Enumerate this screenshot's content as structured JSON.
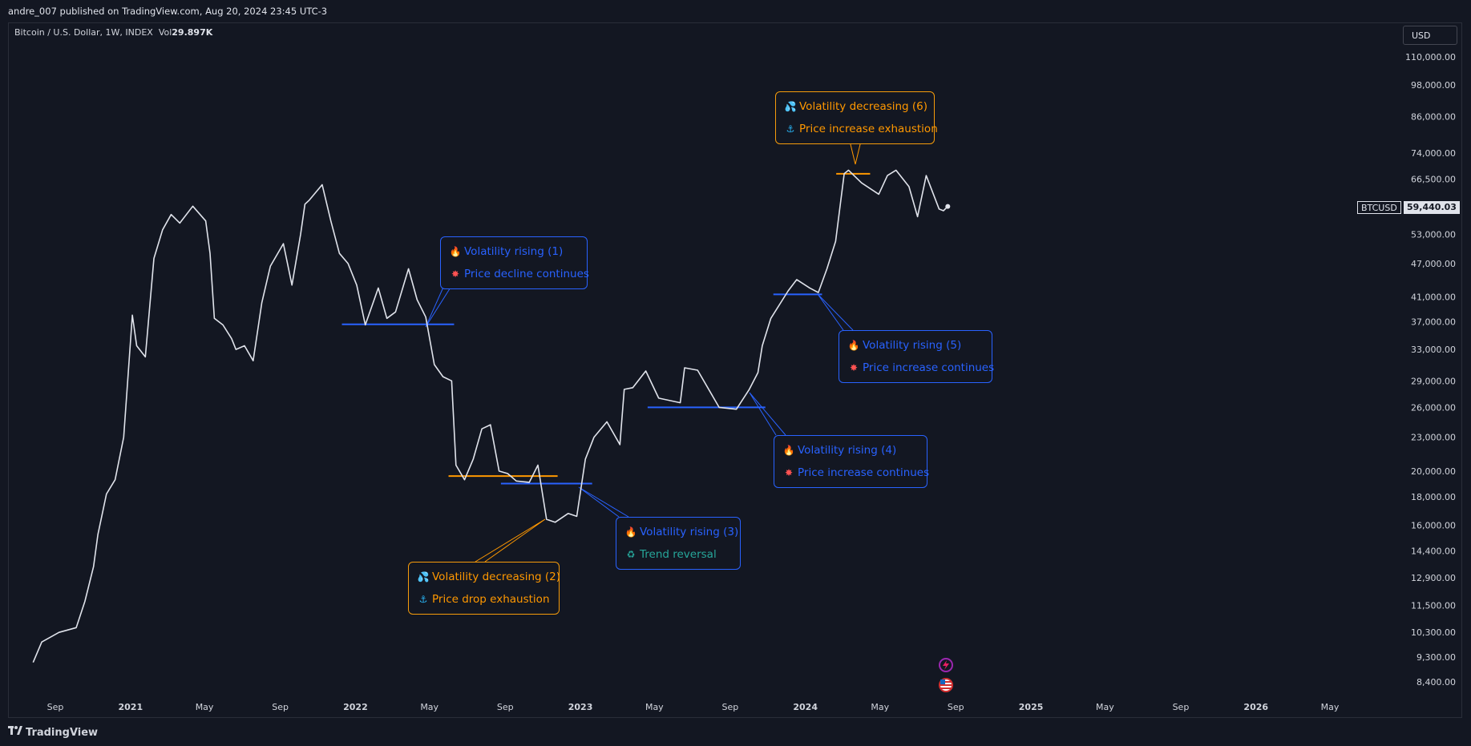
{
  "header": {
    "publish_line": "andre_007 published on TradingView.com, Aug 20, 2024 23:45 UTC-3"
  },
  "symbol": {
    "description": "Bitcoin / U.S. Dollar, 1W, INDEX",
    "vol_label": "Vol",
    "vol_value": "29.897K"
  },
  "currency_button": "USD",
  "last_price": {
    "symbol": "BTCUSD",
    "value": "59,440.03",
    "numeric": 59440.03
  },
  "footer": {
    "brand": "TradingView"
  },
  "colors": {
    "background": "#131722",
    "line": "#e0e3eb",
    "blue": "#2962ff",
    "orange": "#ff9800",
    "green": "#26a69a"
  },
  "callouts": [
    {
      "id": "c1",
      "style": "blue",
      "rows": [
        {
          "icon": "fire-icon",
          "text": "Volatility rising (1)"
        },
        {
          "icon": "burst-icon",
          "text": "Price decline continues"
        }
      ]
    },
    {
      "id": "c2",
      "style": "orange",
      "rows": [
        {
          "icon": "droplets-icon",
          "text": "Volatility decreasing (2)"
        },
        {
          "icon": "anchor-icon",
          "text": "Price drop exhaustion"
        }
      ]
    },
    {
      "id": "c3",
      "style": "blue",
      "rows": [
        {
          "icon": "fire-icon",
          "text": "Volatility rising (3)"
        },
        {
          "icon": "recycle-icon",
          "text": "Trend reversal"
        }
      ]
    },
    {
      "id": "c4",
      "style": "blue",
      "rows": [
        {
          "icon": "fire-icon",
          "text": "Volatility rising (4)"
        },
        {
          "icon": "burst-icon",
          "text": "Price increase continues"
        }
      ]
    },
    {
      "id": "c5",
      "style": "blue",
      "rows": [
        {
          "icon": "fire-icon",
          "text": "Volatility rising (5)"
        },
        {
          "icon": "burst-icon",
          "text": "Price increase continues"
        }
      ]
    },
    {
      "id": "c6",
      "style": "orange",
      "rows": [
        {
          "icon": "droplets-icon",
          "text": "Volatility decreasing (6)"
        },
        {
          "icon": "anchor-icon",
          "text": "Price increase exhaustion"
        }
      ]
    }
  ],
  "chart_data": {
    "type": "line",
    "title": "Bitcoin / U.S. Dollar, 1W, INDEX",
    "xlabel": "",
    "ylabel": "",
    "y_scale": "log",
    "ylim": [
      7800,
      118000
    ],
    "x_range": [
      "2020-07-27",
      "2026-07-01"
    ],
    "grid": false,
    "y_ticks": [
      "110,000.00",
      "98,000.00",
      "86,000.00",
      "74,000.00",
      "66,500.00",
      "59,440.03",
      "53,000.00",
      "47,000.00",
      "41,000.00",
      "37,000.00",
      "33,000.00",
      "29,000.00",
      "26,000.00",
      "23,000.00",
      "20,000.00",
      "18,000.00",
      "16,000.00",
      "14,400.00",
      "12,900.00",
      "11,500.00",
      "10,300.00",
      "9,300.00",
      "8,400.00"
    ],
    "y_tick_values": [
      110000,
      98000,
      86000,
      74000,
      66500,
      59440.03,
      53000,
      47000,
      41000,
      37000,
      33000,
      29000,
      26000,
      23000,
      20000,
      18000,
      16000,
      14400,
      12900,
      11500,
      10300,
      9300,
      8400
    ],
    "x_ticks": [
      {
        "label": "Sep",
        "date": "2020-09-01",
        "bold": false
      },
      {
        "label": "2021",
        "date": "2021-01-01",
        "bold": true
      },
      {
        "label": "May",
        "date": "2021-05-01",
        "bold": false
      },
      {
        "label": "Sep",
        "date": "2021-09-01",
        "bold": false
      },
      {
        "label": "2022",
        "date": "2022-01-01",
        "bold": true
      },
      {
        "label": "May",
        "date": "2022-05-01",
        "bold": false
      },
      {
        "label": "Sep",
        "date": "2022-09-01",
        "bold": false
      },
      {
        "label": "2023",
        "date": "2023-01-01",
        "bold": true
      },
      {
        "label": "May",
        "date": "2023-05-01",
        "bold": false
      },
      {
        "label": "Sep",
        "date": "2023-09-01",
        "bold": false
      },
      {
        "label": "2024",
        "date": "2024-01-01",
        "bold": true
      },
      {
        "label": "May",
        "date": "2024-05-01",
        "bold": false
      },
      {
        "label": "Sep",
        "date": "2024-09-01",
        "bold": false
      },
      {
        "label": "2025",
        "date": "2025-01-01",
        "bold": true
      },
      {
        "label": "May",
        "date": "2025-05-01",
        "bold": false
      },
      {
        "label": "Sep",
        "date": "2025-09-01",
        "bold": false
      },
      {
        "label": "2026",
        "date": "2026-01-01",
        "bold": true
      },
      {
        "label": "May",
        "date": "2026-05-01",
        "bold": false
      }
    ],
    "series": [
      {
        "name": "BTCUSD",
        "x": [
          "2020-07-27",
          "2020-08-10",
          "2020-09-07",
          "2020-10-05",
          "2020-10-19",
          "2020-11-02",
          "2020-11-09",
          "2020-11-23",
          "2020-12-07",
          "2020-12-21",
          "2021-01-04",
          "2021-01-11",
          "2021-01-25",
          "2021-02-08",
          "2021-02-22",
          "2021-03-08",
          "2021-03-22",
          "2021-04-12",
          "2021-05-03",
          "2021-05-10",
          "2021-05-17",
          "2021-05-31",
          "2021-06-14",
          "2021-06-21",
          "2021-07-05",
          "2021-07-19",
          "2021-08-02",
          "2021-08-16",
          "2021-09-06",
          "2021-09-20",
          "2021-10-04",
          "2021-10-11",
          "2021-10-18",
          "2021-11-08",
          "2021-11-22",
          "2021-12-06",
          "2021-12-20",
          "2022-01-03",
          "2022-01-17",
          "2022-02-07",
          "2022-02-21",
          "2022-03-07",
          "2022-03-28",
          "2022-04-11",
          "2022-04-25",
          "2022-05-09",
          "2022-05-23",
          "2022-06-06",
          "2022-06-13",
          "2022-06-27",
          "2022-07-11",
          "2022-07-25",
          "2022-08-08",
          "2022-08-22",
          "2022-09-05",
          "2022-09-19",
          "2022-10-10",
          "2022-10-24",
          "2022-11-07",
          "2022-11-21",
          "2022-12-12",
          "2022-12-26",
          "2023-01-09",
          "2023-01-23",
          "2023-02-13",
          "2023-03-06",
          "2023-03-13",
          "2023-03-27",
          "2023-04-17",
          "2023-05-08",
          "2023-06-12",
          "2023-06-19",
          "2023-07-10",
          "2023-08-14",
          "2023-09-11",
          "2023-10-02",
          "2023-10-16",
          "2023-10-23",
          "2023-11-06",
          "2023-12-04",
          "2023-12-18",
          "2024-01-08",
          "2024-01-22",
          "2024-02-05",
          "2024-02-19",
          "2024-03-04",
          "2024-03-11",
          "2024-04-01",
          "2024-04-29",
          "2024-05-13",
          "2024-05-27",
          "2024-06-17",
          "2024-07-01",
          "2024-07-15",
          "2024-08-05",
          "2024-08-12",
          "2024-08-19"
        ],
        "y": [
          9100,
          9900,
          10300,
          10500,
          11700,
          13500,
          15400,
          18200,
          19300,
          23000,
          38000,
          33500,
          32000,
          48000,
          54000,
          57500,
          55500,
          59500,
          56000,
          49000,
          37500,
          36500,
          34500,
          33000,
          33500,
          31500,
          40000,
          46500,
          51000,
          43000,
          53000,
          60000,
          61000,
          65000,
          56000,
          49000,
          47000,
          43000,
          36500,
          42500,
          37500,
          38500,
          46000,
          40500,
          37700,
          31000,
          29500,
          29000,
          20500,
          19300,
          21000,
          23800,
          24200,
          20000,
          19800,
          19200,
          19100,
          20500,
          16400,
          16200,
          16800,
          16600,
          21000,
          23000,
          24500,
          22300,
          28000,
          28200,
          30200,
          27000,
          26500,
          30600,
          30300,
          26000,
          25800,
          28000,
          30000,
          33500,
          37500,
          42000,
          44000,
          42500,
          41700,
          46000,
          51500,
          68000,
          69000,
          65500,
          62500,
          67500,
          69000,
          64500,
          57000,
          67500,
          58800,
          58400,
          59440
        ]
      }
    ],
    "support_lines": [
      {
        "color": "blue",
        "price": 36600,
        "x_from": "2021-12-10",
        "x_to": "2022-06-10"
      },
      {
        "color": "orange",
        "price": 19600,
        "x_from": "2022-06-01",
        "x_to": "2022-11-25"
      },
      {
        "color": "blue",
        "price": 19000,
        "x_from": "2022-08-25",
        "x_to": "2023-01-20"
      },
      {
        "color": "blue",
        "price": 26000,
        "x_from": "2023-04-20",
        "x_to": "2023-10-28"
      },
      {
        "color": "blue",
        "price": 41400,
        "x_from": "2023-11-10",
        "x_to": "2024-01-28"
      },
      {
        "color": "orange",
        "price": 68000,
        "x_from": "2024-02-20",
        "x_to": "2024-04-15"
      }
    ]
  }
}
